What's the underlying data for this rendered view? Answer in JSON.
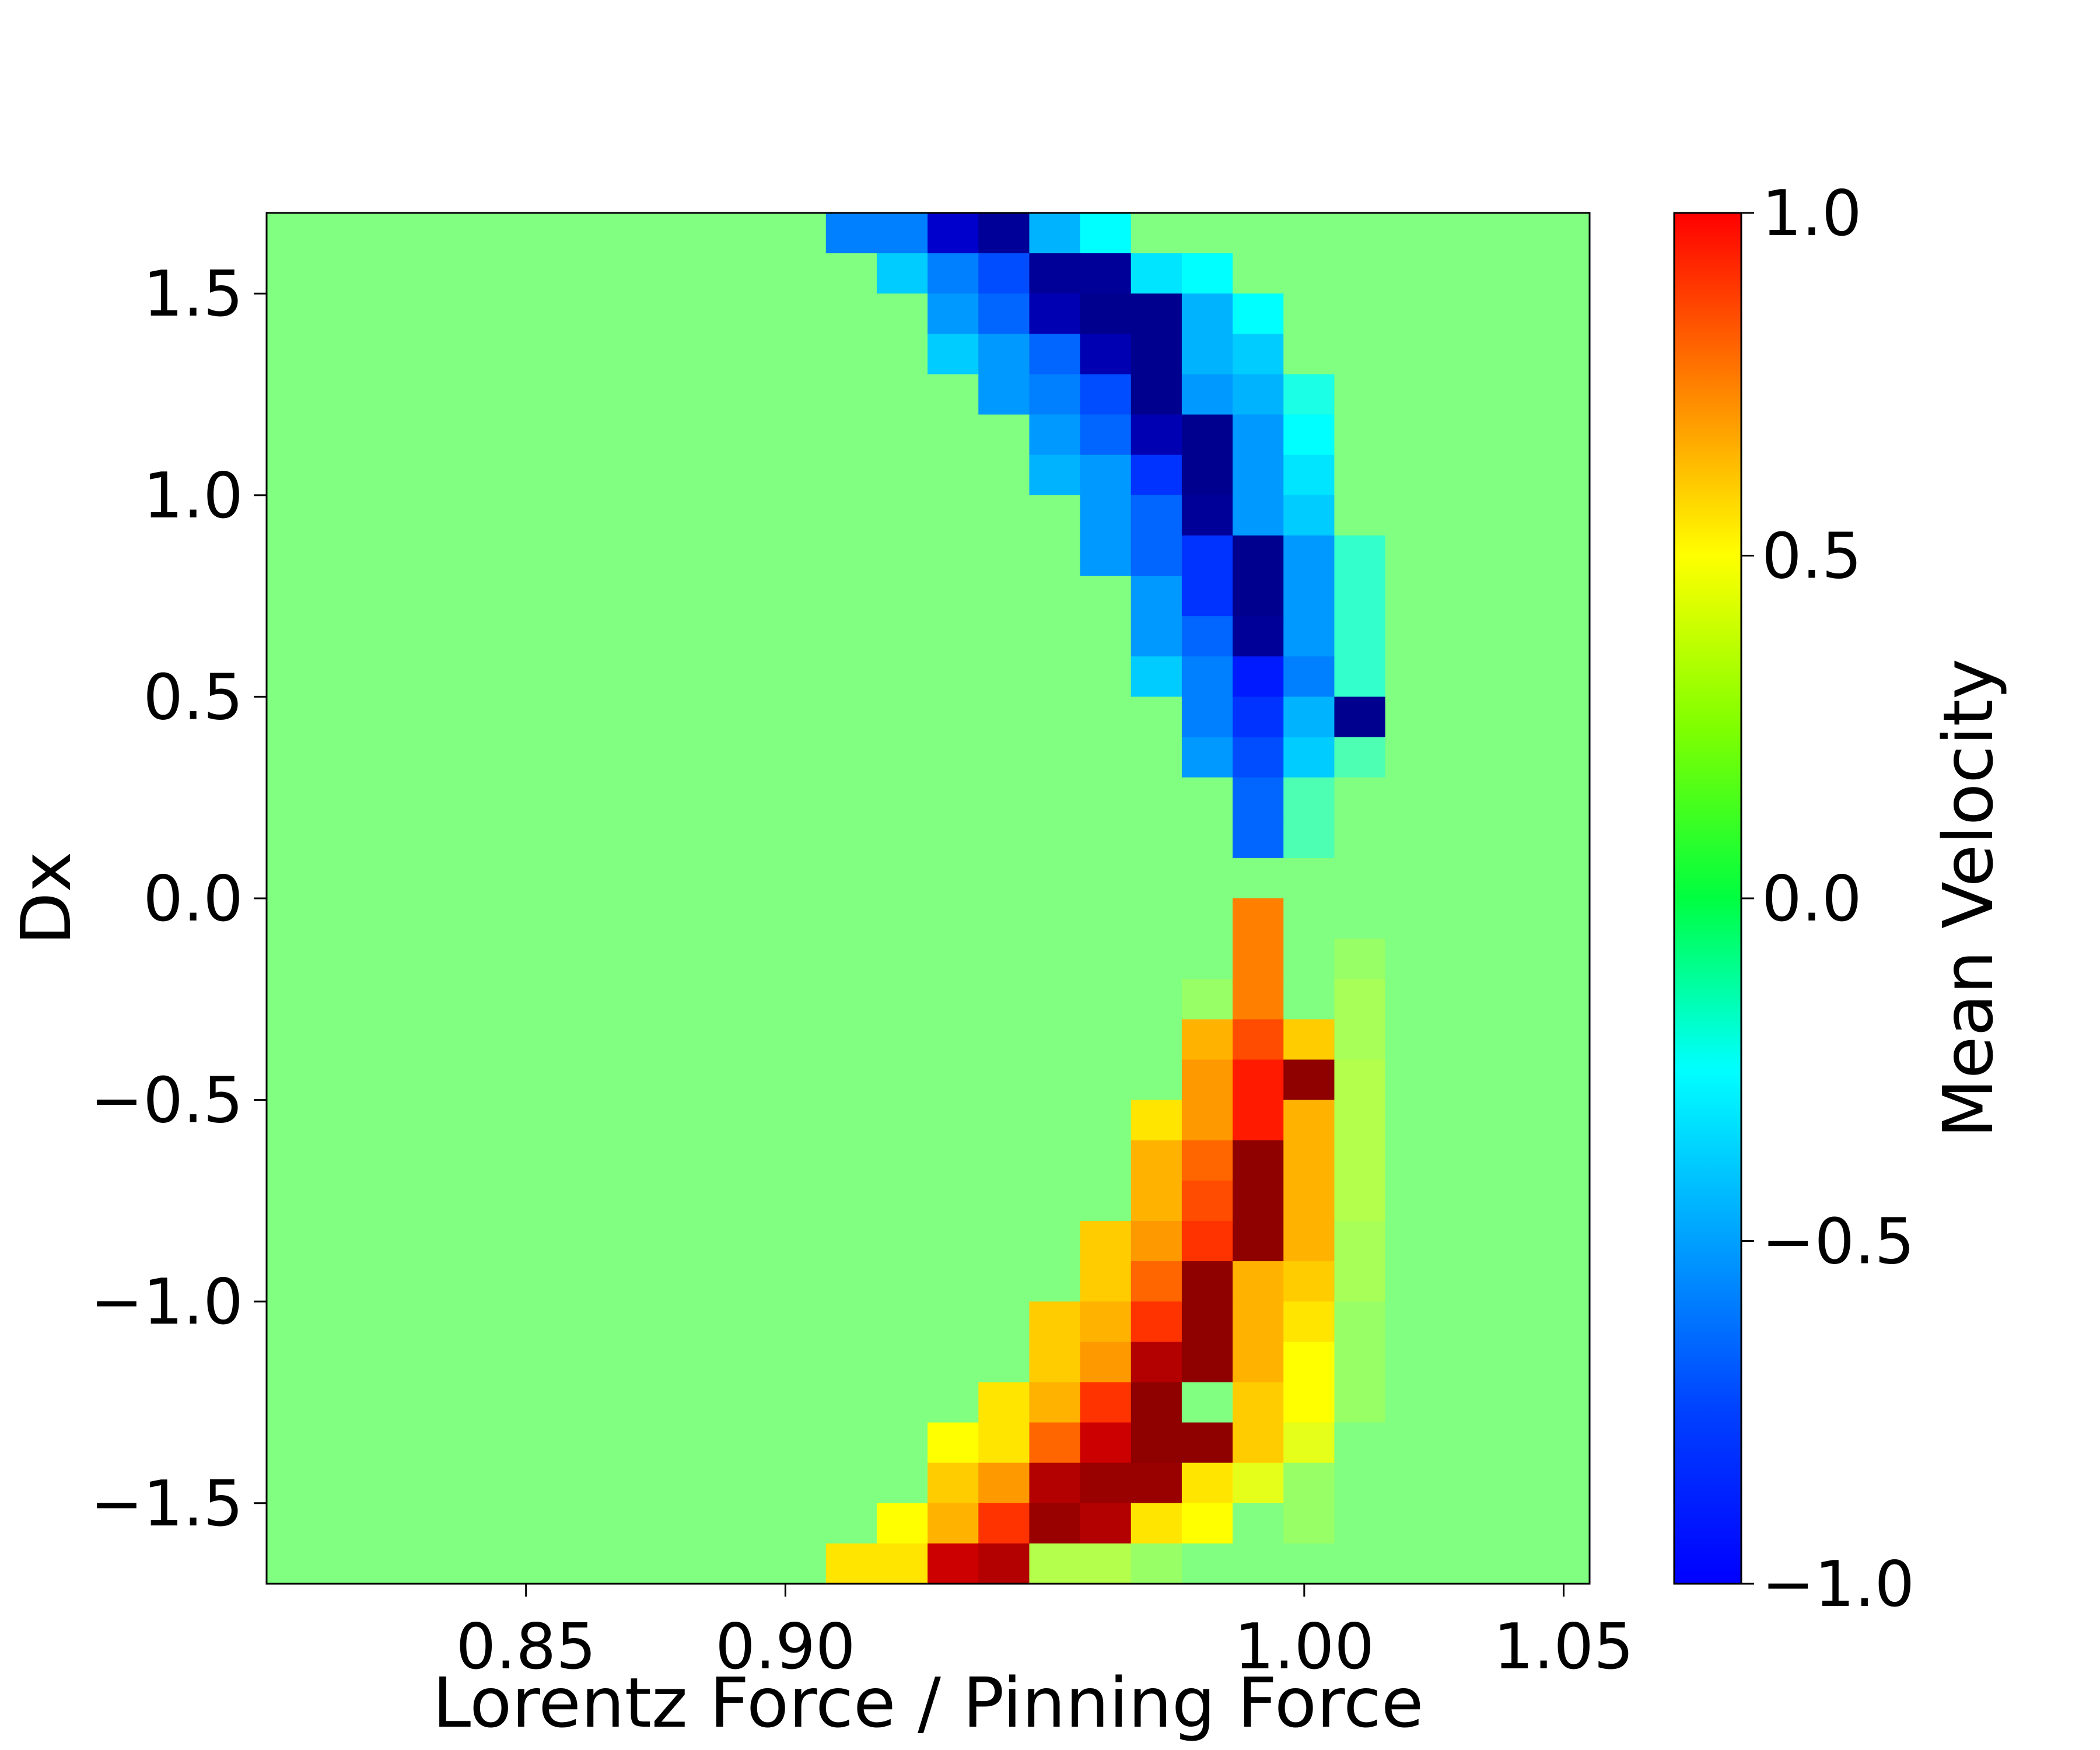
{
  "chart_data": {
    "type": "heatmap",
    "xlabel": "Lorentz Force / Pinning Force",
    "ylabel": "Dx",
    "xlim": [
      0.8,
      1.055
    ],
    "ylim": [
      -1.7,
      1.7
    ],
    "x_ticks": [
      0.85,
      0.9,
      1.0,
      1.05
    ],
    "x_tick_labels": [
      "0.85",
      "0.90",
      "1.00",
      "1.05"
    ],
    "y_ticks": [
      1.5,
      1.0,
      0.5,
      0.0,
      -0.5,
      -1.0,
      -1.5
    ],
    "y_tick_labels": [
      "1.5",
      "1.0",
      "0.5",
      "0.0",
      "−0.5",
      "−1.0",
      "−1.5"
    ],
    "colormap": "jet",
    "background_value": 0.0,
    "colorbar": {
      "label": "Mean Velocity",
      "range": [
        -1.0,
        1.0
      ],
      "ticks": [
        1.0,
        0.5,
        0.0,
        -0.5,
        -1.0
      ],
      "tick_labels": [
        "1.0",
        "0.5",
        "0.0",
        "−0.5",
        "−1.0"
      ]
    },
    "grid": {
      "columns": 26,
      "rows": 34,
      "x_start": 0.8,
      "x_step": 0.0098,
      "y_top": 1.7,
      "y_step": 0.1,
      "note_on_cells": "listed cells give [column, row, value]; all other cells have background_value"
    },
    "cells": [
      [
        11,
        0,
        -0.5
      ],
      [
        12,
        0,
        -0.5
      ],
      [
        13,
        0,
        -0.85
      ],
      [
        14,
        0,
        -0.95
      ],
      [
        15,
        0,
        -0.4
      ],
      [
        16,
        0,
        -0.25
      ],
      [
        12,
        1,
        -0.35
      ],
      [
        13,
        1,
        -0.5
      ],
      [
        14,
        1,
        -0.6
      ],
      [
        15,
        1,
        -0.95
      ],
      [
        16,
        1,
        -0.95
      ],
      [
        17,
        1,
        -0.3
      ],
      [
        18,
        1,
        -0.25
      ],
      [
        13,
        2,
        -0.45
      ],
      [
        14,
        2,
        -0.55
      ],
      [
        15,
        2,
        -0.9
      ],
      [
        16,
        2,
        -0.97
      ],
      [
        17,
        2,
        -0.97
      ],
      [
        18,
        2,
        -0.4
      ],
      [
        19,
        2,
        -0.25
      ],
      [
        13,
        3,
        -0.35
      ],
      [
        14,
        3,
        -0.45
      ],
      [
        15,
        3,
        -0.55
      ],
      [
        16,
        3,
        -0.9
      ],
      [
        17,
        3,
        -0.97
      ],
      [
        18,
        3,
        -0.4
      ],
      [
        19,
        3,
        -0.35
      ],
      [
        14,
        4,
        -0.45
      ],
      [
        15,
        4,
        -0.5
      ],
      [
        16,
        4,
        -0.6
      ],
      [
        17,
        4,
        -0.97
      ],
      [
        18,
        4,
        -0.45
      ],
      [
        19,
        4,
        -0.4
      ],
      [
        20,
        4,
        -0.2
      ],
      [
        15,
        5,
        -0.45
      ],
      [
        16,
        5,
        -0.55
      ],
      [
        17,
        5,
        -0.9
      ],
      [
        18,
        5,
        -0.97
      ],
      [
        19,
        5,
        -0.45
      ],
      [
        20,
        5,
        -0.25
      ],
      [
        15,
        6,
        -0.4
      ],
      [
        16,
        6,
        -0.45
      ],
      [
        17,
        6,
        -0.65
      ],
      [
        18,
        6,
        -0.97
      ],
      [
        19,
        6,
        -0.45
      ],
      [
        20,
        6,
        -0.3
      ],
      [
        16,
        7,
        -0.45
      ],
      [
        17,
        7,
        -0.55
      ],
      [
        18,
        7,
        -0.95
      ],
      [
        19,
        7,
        -0.45
      ],
      [
        20,
        7,
        -0.35
      ],
      [
        16,
        8,
        -0.45
      ],
      [
        17,
        8,
        -0.55
      ],
      [
        18,
        8,
        -0.65
      ],
      [
        19,
        8,
        -0.97
      ],
      [
        20,
        8,
        -0.45
      ],
      [
        21,
        8,
        -0.15
      ],
      [
        17,
        9,
        -0.45
      ],
      [
        18,
        9,
        -0.65
      ],
      [
        19,
        9,
        -0.97
      ],
      [
        20,
        9,
        -0.45
      ],
      [
        21,
        9,
        -0.15
      ],
      [
        17,
        10,
        -0.45
      ],
      [
        18,
        10,
        -0.55
      ],
      [
        19,
        10,
        -0.95
      ],
      [
        20,
        10,
        -0.45
      ],
      [
        21,
        10,
        -0.15
      ],
      [
        17,
        11,
        -0.35
      ],
      [
        18,
        11,
        -0.5
      ],
      [
        19,
        11,
        -0.7
      ],
      [
        20,
        11,
        -0.5
      ],
      [
        21,
        11,
        -0.15
      ],
      [
        18,
        12,
        -0.5
      ],
      [
        19,
        12,
        -0.65
      ],
      [
        20,
        12,
        -0.4
      ],
      [
        21,
        12,
        -0.97
      ],
      [
        18,
        13,
        -0.45
      ],
      [
        19,
        13,
        -0.6
      ],
      [
        20,
        13,
        -0.35
      ],
      [
        21,
        13,
        -0.1
      ],
      [
        19,
        14,
        -0.55
      ],
      [
        20,
        14,
        -0.1
      ],
      [
        19,
        15,
        -0.55
      ],
      [
        20,
        15,
        -0.1
      ],
      [
        19,
        17,
        0.5
      ],
      [
        19,
        18,
        0.5
      ],
      [
        21,
        18,
        0.05
      ],
      [
        18,
        19,
        0.05
      ],
      [
        19,
        19,
        0.5
      ],
      [
        21,
        19,
        0.08
      ],
      [
        18,
        20,
        0.4
      ],
      [
        19,
        20,
        0.6
      ],
      [
        20,
        20,
        0.35
      ],
      [
        21,
        20,
        0.08
      ],
      [
        18,
        21,
        0.45
      ],
      [
        19,
        21,
        0.7
      ],
      [
        20,
        21,
        0.97
      ],
      [
        21,
        21,
        0.1
      ],
      [
        17,
        22,
        0.3
      ],
      [
        18,
        22,
        0.45
      ],
      [
        19,
        22,
        0.7
      ],
      [
        20,
        22,
        0.4
      ],
      [
        21,
        22,
        0.1
      ],
      [
        17,
        23,
        0.4
      ],
      [
        18,
        23,
        0.55
      ],
      [
        19,
        23,
        0.97
      ],
      [
        20,
        23,
        0.4
      ],
      [
        21,
        23,
        0.1
      ],
      [
        17,
        24,
        0.4
      ],
      [
        18,
        24,
        0.6
      ],
      [
        19,
        24,
        0.97
      ],
      [
        20,
        24,
        0.4
      ],
      [
        21,
        24,
        0.1
      ],
      [
        16,
        25,
        0.35
      ],
      [
        17,
        25,
        0.45
      ],
      [
        18,
        25,
        0.65
      ],
      [
        19,
        25,
        0.97
      ],
      [
        20,
        25,
        0.4
      ],
      [
        21,
        25,
        0.08
      ],
      [
        16,
        26,
        0.35
      ],
      [
        17,
        26,
        0.55
      ],
      [
        18,
        26,
        0.97
      ],
      [
        19,
        26,
        0.4
      ],
      [
        20,
        26,
        0.35
      ],
      [
        21,
        26,
        0.08
      ],
      [
        15,
        27,
        0.35
      ],
      [
        16,
        27,
        0.4
      ],
      [
        17,
        27,
        0.65
      ],
      [
        18,
        27,
        0.97
      ],
      [
        19,
        27,
        0.4
      ],
      [
        20,
        27,
        0.3
      ],
      [
        21,
        27,
        0.05
      ],
      [
        15,
        28,
        0.35
      ],
      [
        16,
        28,
        0.45
      ],
      [
        17,
        28,
        0.9
      ],
      [
        18,
        28,
        0.97
      ],
      [
        19,
        28,
        0.4
      ],
      [
        20,
        28,
        0.25
      ],
      [
        21,
        28,
        0.05
      ],
      [
        14,
        29,
        0.3
      ],
      [
        15,
        29,
        0.4
      ],
      [
        16,
        29,
        0.65
      ],
      [
        17,
        29,
        0.97
      ],
      [
        19,
        29,
        0.35
      ],
      [
        20,
        29,
        0.25
      ],
      [
        21,
        29,
        0.05
      ],
      [
        13,
        30,
        0.25
      ],
      [
        14,
        30,
        0.3
      ],
      [
        15,
        30,
        0.55
      ],
      [
        16,
        30,
        0.85
      ],
      [
        17,
        30,
        0.97
      ],
      [
        18,
        30,
        0.97
      ],
      [
        19,
        30,
        0.35
      ],
      [
        20,
        30,
        0.2
      ],
      [
        13,
        31,
        0.35
      ],
      [
        14,
        31,
        0.45
      ],
      [
        15,
        31,
        0.9
      ],
      [
        16,
        31,
        0.95
      ],
      [
        17,
        31,
        0.95
      ],
      [
        18,
        31,
        0.3
      ],
      [
        19,
        31,
        0.2
      ],
      [
        20,
        31,
        0.05
      ],
      [
        12,
        32,
        0.25
      ],
      [
        13,
        32,
        0.4
      ],
      [
        14,
        32,
        0.65
      ],
      [
        15,
        32,
        0.95
      ],
      [
        16,
        32,
        0.9
      ],
      [
        17,
        32,
        0.3
      ],
      [
        18,
        32,
        0.25
      ],
      [
        20,
        32,
        0.05
      ],
      [
        11,
        33,
        0.3
      ],
      [
        12,
        33,
        0.3
      ],
      [
        13,
        33,
        0.85
      ],
      [
        14,
        33,
        0.9
      ],
      [
        15,
        33,
        0.1
      ],
      [
        16,
        33,
        0.1
      ],
      [
        17,
        33,
        0.05
      ]
    ]
  }
}
